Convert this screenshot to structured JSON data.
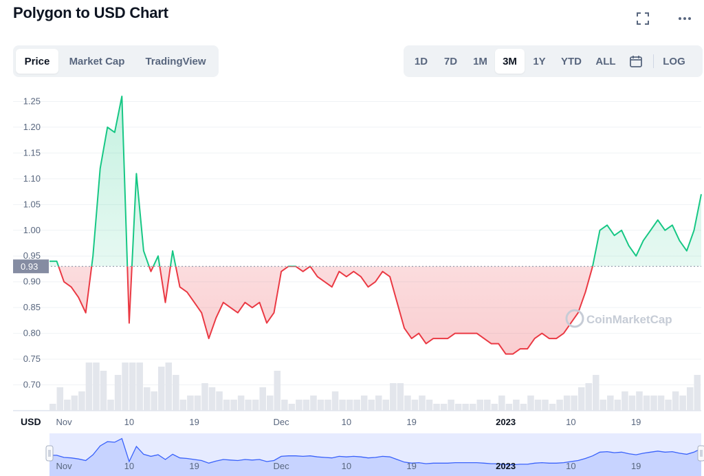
{
  "title": "Polygon to USD Chart",
  "icons": {
    "fullscreen": "fullscreen-icon",
    "more": "more-icon",
    "calendar": "calendar-icon"
  },
  "tabs": [
    "Price",
    "Market Cap",
    "TradingView"
  ],
  "active_tab": "Price",
  "ranges": [
    "1D",
    "7D",
    "1M",
    "3M",
    "1Y",
    "YTD",
    "ALL"
  ],
  "active_range": "3M",
  "log_label": "LOG",
  "currency": "USD",
  "watermark": "CoinMarketCap",
  "current_price_label": "0.93",
  "colors": {
    "up": "#16c784",
    "down": "#ea3943",
    "nav": "#3861fb",
    "axis_text": "#58667e"
  },
  "chart_data": {
    "type": "line",
    "title": "",
    "xlabel": "",
    "ylabel": "",
    "ylim": [
      0.65,
      1.28
    ],
    "yticks": [
      0.7,
      0.75,
      0.8,
      0.85,
      0.9,
      0.95,
      1.0,
      1.05,
      1.1,
      1.15,
      1.2,
      1.25
    ],
    "ytick_labels": [
      "0.70",
      "0.75",
      "0.80",
      "0.85",
      "0.90",
      "0.95",
      "1.00",
      "1.05",
      "1.10",
      "1.15",
      "1.20",
      "1.25"
    ],
    "xlim": [
      "2022-10-30",
      "2023-01-28"
    ],
    "xticks": [
      "2022-11-01",
      "2022-11-10",
      "2022-11-19",
      "2022-12-01",
      "2022-12-10",
      "2022-12-19",
      "2023-01-01",
      "2023-01-10",
      "2023-01-19"
    ],
    "xtick_labels": [
      "Nov",
      "10",
      "19",
      "Dec",
      "10",
      "19",
      "2023",
      "10",
      "19"
    ],
    "bold_xtick_labels": [
      "2023"
    ],
    "baseline": 0.93,
    "grid": true,
    "series": [
      {
        "x": [
          "2022-10-30",
          "2022-10-31",
          "2022-11-01",
          "2022-11-02",
          "2022-11-03",
          "2022-11-04",
          "2022-11-05",
          "2022-11-06",
          "2022-11-07",
          "2022-11-08",
          "2022-11-09",
          "2022-11-10",
          "2022-11-11",
          "2022-11-12",
          "2022-11-13",
          "2022-11-14",
          "2022-11-15",
          "2022-11-16",
          "2022-11-17",
          "2022-11-18",
          "2022-11-19",
          "2022-11-20",
          "2022-11-21",
          "2022-11-22",
          "2022-11-23",
          "2022-11-24",
          "2022-11-25",
          "2022-11-26",
          "2022-11-27",
          "2022-11-28",
          "2022-11-29",
          "2022-11-30",
          "2022-12-01",
          "2022-12-02",
          "2022-12-03",
          "2022-12-04",
          "2022-12-05",
          "2022-12-06",
          "2022-12-07",
          "2022-12-08",
          "2022-12-09",
          "2022-12-10",
          "2022-12-11",
          "2022-12-12",
          "2022-12-13",
          "2022-12-14",
          "2022-12-15",
          "2022-12-16",
          "2022-12-17",
          "2022-12-18",
          "2022-12-19",
          "2022-12-20",
          "2022-12-21",
          "2022-12-22",
          "2022-12-23",
          "2022-12-24",
          "2022-12-25",
          "2022-12-26",
          "2022-12-27",
          "2022-12-28",
          "2022-12-29",
          "2022-12-30",
          "2022-12-31",
          "2023-01-01",
          "2023-01-02",
          "2023-01-03",
          "2023-01-04",
          "2023-01-05",
          "2023-01-06",
          "2023-01-07",
          "2023-01-08",
          "2023-01-09",
          "2023-01-10",
          "2023-01-11",
          "2023-01-12",
          "2023-01-13",
          "2023-01-14",
          "2023-01-15",
          "2023-01-16",
          "2023-01-17",
          "2023-01-18",
          "2023-01-19",
          "2023-01-20",
          "2023-01-21",
          "2023-01-22",
          "2023-01-23",
          "2023-01-24",
          "2023-01-25",
          "2023-01-26",
          "2023-01-27",
          "2023-01-28"
        ],
        "y": [
          0.94,
          0.94,
          0.9,
          0.89,
          0.87,
          0.84,
          0.95,
          1.12,
          1.2,
          1.19,
          1.26,
          0.82,
          1.11,
          0.96,
          0.92,
          0.95,
          0.86,
          0.96,
          0.89,
          0.88,
          0.86,
          0.84,
          0.79,
          0.83,
          0.86,
          0.85,
          0.84,
          0.86,
          0.85,
          0.86,
          0.82,
          0.84,
          0.92,
          0.93,
          0.93,
          0.92,
          0.93,
          0.91,
          0.9,
          0.89,
          0.92,
          0.91,
          0.92,
          0.91,
          0.89,
          0.9,
          0.92,
          0.91,
          0.86,
          0.81,
          0.79,
          0.8,
          0.78,
          0.79,
          0.79,
          0.79,
          0.8,
          0.8,
          0.8,
          0.8,
          0.79,
          0.78,
          0.78,
          0.76,
          0.76,
          0.77,
          0.77,
          0.79,
          0.8,
          0.79,
          0.79,
          0.8,
          0.82,
          0.84,
          0.88,
          0.93,
          1.0,
          1.01,
          0.99,
          1.0,
          0.97,
          0.95,
          0.98,
          1.0,
          1.02,
          1.0,
          1.01,
          0.98,
          0.96,
          1.0,
          1.07
        ]
      }
    ]
  }
}
